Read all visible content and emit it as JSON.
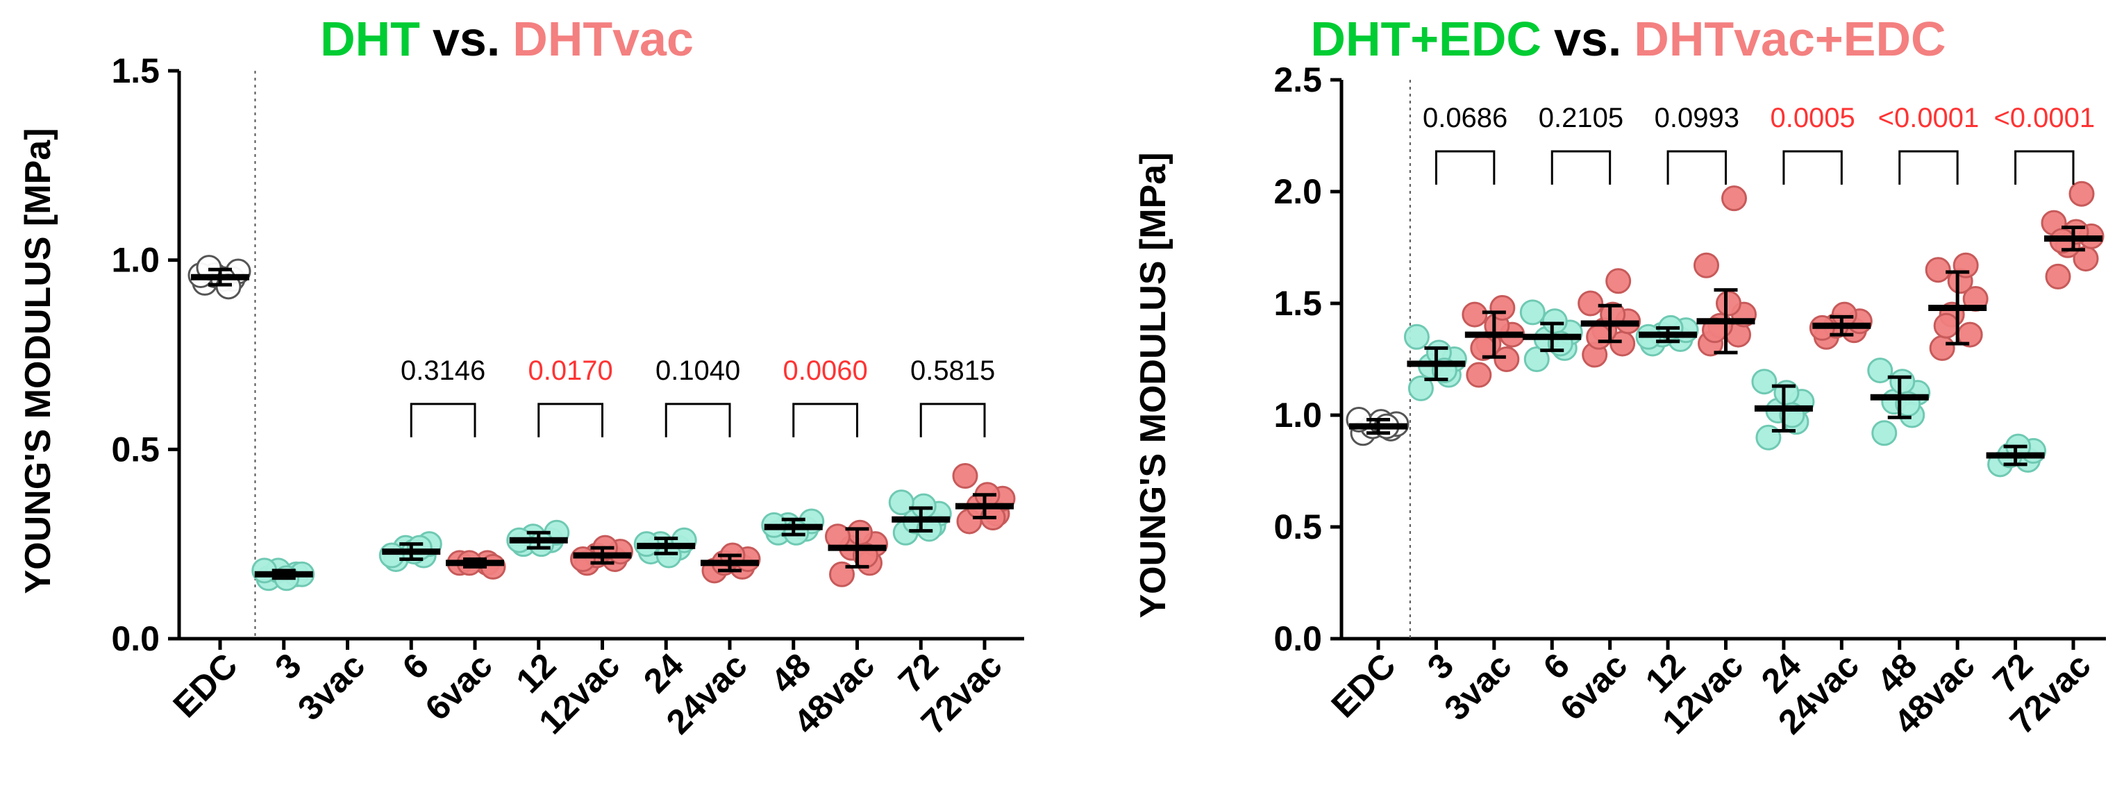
{
  "colors": {
    "dht": "#00cc33",
    "dhtvac": "#f48080",
    "vs": "#000000",
    "sig": "#ff3333",
    "ns": "#000000",
    "fill_edc": "#ffffff",
    "fill_dht": "#a8eedd",
    "fill_vac": "#f08080"
  },
  "chart_data": [
    {
      "type": "scatter",
      "title": "DHT vs. DHTvac",
      "title_parts": {
        "a": "DHT",
        "vs": "vs.",
        "b": "DHTvac"
      },
      "ylabel": "YOUNG'S MODULUS [MPa]",
      "ylim": [
        0,
        1.5
      ],
      "yticks": [
        "0.0",
        "0.5",
        "1.0",
        "1.5"
      ],
      "ytick_values": [
        0,
        0.5,
        1.0,
        1.5
      ],
      "categories": [
        "EDC",
        "3",
        "3vac",
        "6",
        "6vac",
        "12",
        "12vac",
        "24",
        "24vac",
        "48",
        "48vac",
        "72",
        "72vac"
      ],
      "series": [
        {
          "name": "EDC",
          "group": "edc",
          "mean": 0.955,
          "sd": 0.02,
          "points": [
            0.94,
            0.95,
            0.96,
            0.97,
            0.95,
            0.96,
            0.93,
            0.98
          ]
        },
        {
          "name": "3",
          "group": "dht",
          "mean": 0.17,
          "sd": 0.01,
          "points": [
            0.16,
            0.17,
            0.18,
            0.17,
            0.16,
            0.18
          ]
        },
        {
          "name": "3vac",
          "group": "vac",
          "mean": null,
          "sd": null,
          "points": []
        },
        {
          "name": "6",
          "group": "dht",
          "mean": 0.23,
          "sd": 0.02,
          "points": [
            0.21,
            0.22,
            0.24,
            0.25,
            0.23,
            0.22,
            0.24
          ]
        },
        {
          "name": "6vac",
          "group": "vac",
          "mean": 0.2,
          "sd": 0.01,
          "points": [
            0.2,
            0.2,
            0.2,
            0.19
          ]
        },
        {
          "name": "12",
          "group": "dht",
          "mean": 0.26,
          "sd": 0.02,
          "points": [
            0.25,
            0.26,
            0.27,
            0.28,
            0.25,
            0.26
          ]
        },
        {
          "name": "12vac",
          "group": "vac",
          "mean": 0.22,
          "sd": 0.02,
          "points": [
            0.2,
            0.21,
            0.22,
            0.23,
            0.24,
            0.21
          ]
        },
        {
          "name": "24",
          "group": "dht",
          "mean": 0.245,
          "sd": 0.02,
          "points": [
            0.23,
            0.24,
            0.25,
            0.26,
            0.22,
            0.25
          ]
        },
        {
          "name": "24vac",
          "group": "vac",
          "mean": 0.2,
          "sd": 0.02,
          "points": [
            0.18,
            0.19,
            0.2,
            0.21,
            0.22
          ]
        },
        {
          "name": "48",
          "group": "dht",
          "mean": 0.295,
          "sd": 0.02,
          "points": [
            0.28,
            0.29,
            0.3,
            0.31,
            0.28,
            0.3
          ]
        },
        {
          "name": "48vac",
          "group": "vac",
          "mean": 0.24,
          "sd": 0.05,
          "points": [
            0.17,
            0.2,
            0.24,
            0.25,
            0.28,
            0.27,
            0.22
          ]
        },
        {
          "name": "72",
          "group": "dht",
          "mean": 0.315,
          "sd": 0.03,
          "points": [
            0.28,
            0.3,
            0.31,
            0.33,
            0.35,
            0.36,
            0.29
          ]
        },
        {
          "name": "72vac",
          "group": "vac",
          "mean": 0.35,
          "sd": 0.03,
          "points": [
            0.31,
            0.33,
            0.35,
            0.37,
            0.38,
            0.43,
            0.32
          ]
        }
      ],
      "comparisons": [
        {
          "a": "6",
          "b": "6vac",
          "label": "0.3146",
          "significant": false,
          "y": 0.62
        },
        {
          "a": "12",
          "b": "12vac",
          "label": "0.0170",
          "significant": true,
          "y": 0.62
        },
        {
          "a": "24",
          "b": "24vac",
          "label": "0.1040",
          "significant": false,
          "y": 0.62
        },
        {
          "a": "48",
          "b": "48vac",
          "label": "0.0060",
          "significant": true,
          "y": 0.62
        },
        {
          "a": "72",
          "b": "72vac",
          "label": "0.5815",
          "significant": false,
          "y": 0.62
        }
      ]
    },
    {
      "type": "scatter",
      "title": "DHT+EDC vs. DHTvac+EDC",
      "title_parts": {
        "a": "DHT+EDC",
        "vs": "vs.",
        "b": "DHTvac+EDC"
      },
      "ylabel": "YOUNG'S MODULUS [MPa]",
      "ylim": [
        0,
        2.5
      ],
      "yticks": [
        "0.0",
        "0.5",
        "1.0",
        "1.5",
        "2.0",
        "2.5"
      ],
      "ytick_values": [
        0,
        0.5,
        1.0,
        1.5,
        2.0,
        2.5
      ],
      "categories": [
        "EDC",
        "3",
        "3vac",
        "6",
        "6vac",
        "12",
        "12vac",
        "24",
        "24vac",
        "48",
        "48vac",
        "72",
        "72vac"
      ],
      "series": [
        {
          "name": "EDC",
          "group": "edc",
          "mean": 0.95,
          "sd": 0.03,
          "points": [
            0.92,
            0.94,
            0.95,
            0.96,
            0.97,
            0.98,
            0.95
          ]
        },
        {
          "name": "3",
          "group": "dht",
          "mean": 1.23,
          "sd": 0.07,
          "points": [
            1.12,
            1.18,
            1.22,
            1.25,
            1.28,
            1.35,
            1.2
          ]
        },
        {
          "name": "3vac",
          "group": "vac",
          "mean": 1.36,
          "sd": 0.1,
          "points": [
            1.18,
            1.25,
            1.32,
            1.36,
            1.4,
            1.45,
            1.48,
            1.3
          ]
        },
        {
          "name": "6",
          "group": "dht",
          "mean": 1.35,
          "sd": 0.06,
          "points": [
            1.25,
            1.3,
            1.34,
            1.37,
            1.42,
            1.46,
            1.32
          ]
        },
        {
          "name": "6vac",
          "group": "vac",
          "mean": 1.41,
          "sd": 0.08,
          "points": [
            1.27,
            1.32,
            1.38,
            1.42,
            1.45,
            1.5,
            1.6,
            1.35
          ]
        },
        {
          "name": "12",
          "group": "dht",
          "mean": 1.36,
          "sd": 0.03,
          "points": [
            1.32,
            1.34,
            1.36,
            1.38,
            1.39,
            1.35
          ]
        },
        {
          "name": "12vac",
          "group": "vac",
          "mean": 1.42,
          "sd": 0.14,
          "points": [
            1.32,
            1.36,
            1.4,
            1.45,
            1.5,
            1.67,
            1.97,
            1.38
          ]
        },
        {
          "name": "24",
          "group": "dht",
          "mean": 1.03,
          "sd": 0.1,
          "points": [
            0.9,
            0.97,
            1.02,
            1.06,
            1.1,
            1.15,
            1.0
          ]
        },
        {
          "name": "24vac",
          "group": "vac",
          "mean": 1.4,
          "sd": 0.04,
          "points": [
            1.35,
            1.38,
            1.4,
            1.42,
            1.45,
            1.39
          ]
        },
        {
          "name": "48",
          "group": "dht",
          "mean": 1.08,
          "sd": 0.09,
          "points": [
            0.92,
            1.0,
            1.06,
            1.1,
            1.15,
            1.2,
            1.05
          ]
        },
        {
          "name": "48vac",
          "group": "vac",
          "mean": 1.48,
          "sd": 0.16,
          "points": [
            1.3,
            1.36,
            1.45,
            1.52,
            1.6,
            1.65,
            1.67,
            1.4
          ]
        },
        {
          "name": "72",
          "group": "dht",
          "mean": 0.82,
          "sd": 0.04,
          "points": [
            0.78,
            0.8,
            0.82,
            0.84,
            0.86
          ]
        },
        {
          "name": "72vac",
          "group": "vac",
          "mean": 1.79,
          "sd": 0.05,
          "points": [
            1.62,
            1.7,
            1.76,
            1.8,
            1.82,
            1.86,
            1.99,
            1.78
          ]
        }
      ],
      "comparisons": [
        {
          "a": "3",
          "b": "3vac",
          "label": "0.0686",
          "significant": false,
          "y": 2.18
        },
        {
          "a": "6",
          "b": "6vac",
          "label": "0.2105",
          "significant": false,
          "y": 2.18
        },
        {
          "a": "12",
          "b": "12vac",
          "label": "0.0993",
          "significant": false,
          "y": 2.18
        },
        {
          "a": "24",
          "b": "24vac",
          "label": "0.0005",
          "significant": true,
          "y": 2.18
        },
        {
          "a": "48",
          "b": "48vac",
          "label": "<0.0001",
          "significant": true,
          "y": 2.18
        },
        {
          "a": "72",
          "b": "72vac",
          "label": "<0.0001",
          "significant": true,
          "y": 2.18
        }
      ]
    }
  ]
}
